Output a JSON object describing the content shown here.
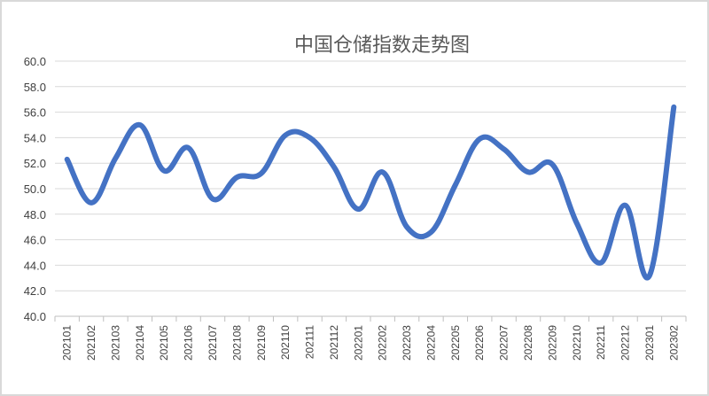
{
  "chart_data": {
    "type": "line",
    "title": "中国仓储指数走势图",
    "xlabel": "",
    "ylabel": "",
    "ylim": [
      40.0,
      60.0
    ],
    "ystep": 2.0,
    "yticks": [
      "40.0",
      "42.0",
      "44.0",
      "46.0",
      "48.0",
      "50.0",
      "52.0",
      "54.0",
      "56.0",
      "58.0",
      "60.0"
    ],
    "grid": true,
    "smooth": true,
    "categories": [
      "202101",
      "202102",
      "202103",
      "202104",
      "202105",
      "202106",
      "202107",
      "202108",
      "202109",
      "202110",
      "202111",
      "202112",
      "202201",
      "202202",
      "202203",
      "202204",
      "202205",
      "202206",
      "202207",
      "202208",
      "202209",
      "202210",
      "202211",
      "202212",
      "202301",
      "202302"
    ],
    "series": [
      {
        "name": "",
        "color": "#4472c4",
        "values": [
          52.3,
          48.9,
          52.4,
          55.0,
          51.4,
          53.2,
          49.2,
          50.9,
          51.2,
          54.2,
          54.0,
          51.7,
          48.4,
          51.3,
          47.0,
          46.6,
          50.3,
          53.9,
          53.1,
          51.3,
          51.9,
          47.3,
          44.2,
          48.7,
          43.2,
          56.4
        ]
      }
    ]
  }
}
